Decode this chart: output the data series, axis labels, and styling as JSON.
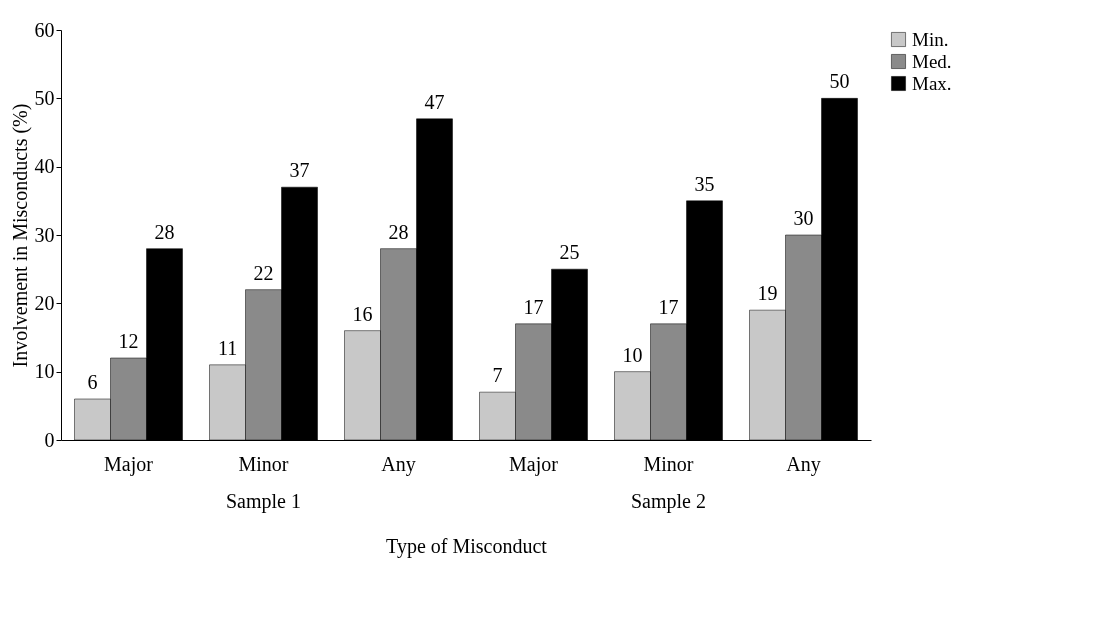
{
  "chart_data": {
    "type": "bar",
    "xlabel": "Type of Misconduct",
    "ylabel": "Involvement in Misconducts (%)",
    "categories": [
      "Major",
      "Minor",
      "Any",
      "Major",
      "Minor",
      "Any"
    ],
    "series": [
      {
        "name": "Min.",
        "color": "#c8c8c8",
        "values": [
          6,
          11,
          16,
          7,
          10,
          19
        ]
      },
      {
        "name": "Med.",
        "color": "#8a8a8a",
        "values": [
          12,
          22,
          28,
          17,
          17,
          30
        ]
      },
      {
        "name": "Max.",
        "color": "#000000",
        "values": [
          28,
          37,
          47,
          25,
          35,
          50
        ]
      }
    ],
    "annotations": [
      "Sample 1",
      "Sample 2"
    ],
    "ylim": [
      0,
      60
    ],
    "yticks": [
      0,
      10,
      20,
      30,
      40,
      50,
      60
    ],
    "grid": false,
    "legend": "right",
    "data_labels": true
  }
}
